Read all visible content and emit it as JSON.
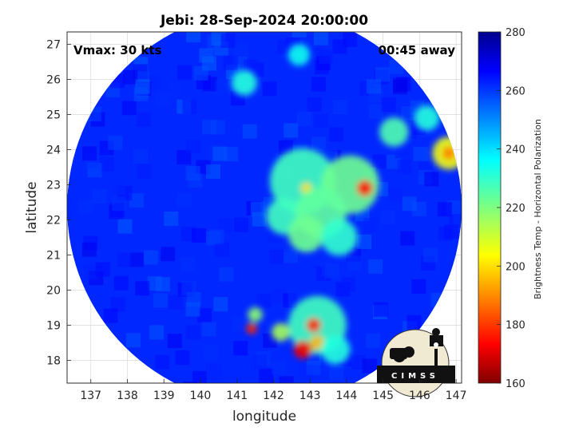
{
  "chart_data": {
    "type": "heatmap",
    "title": "Jebi: 28-Sep-2024 20:00:00",
    "annotations": {
      "vmax": "Vmax: 30 kts",
      "time_away": "00:45 away"
    },
    "xlabel": "longitude",
    "ylabel": "latitude",
    "xlim": [
      136.35,
      147.15
    ],
    "ylim": [
      17.35,
      27.35
    ],
    "xticks": [
      137,
      138,
      139,
      140,
      141,
      142,
      143,
      144,
      145,
      146,
      147
    ],
    "yticks": [
      18,
      19,
      20,
      21,
      22,
      23,
      24,
      25,
      26,
      27
    ],
    "grid": true,
    "colorbar": {
      "label": "Brightness Temp - Horizontal Polarization",
      "range": [
        160,
        280
      ],
      "ticks": [
        160,
        180,
        200,
        220,
        240,
        260,
        280
      ]
    },
    "swath": {
      "center_lon": 141.75,
      "center_lat": 22.35,
      "radius_deg": 5.4,
      "background_value": 262
    },
    "features": [
      {
        "lon": 142.8,
        "lat": 23.1,
        "r": 0.9,
        "value": 228
      },
      {
        "lon": 144.1,
        "lat": 23.0,
        "r": 0.8,
        "value": 222
      },
      {
        "lon": 144.5,
        "lat": 22.9,
        "r": 0.22,
        "value": 176
      },
      {
        "lon": 142.9,
        "lat": 22.9,
        "r": 0.15,
        "value": 200
      },
      {
        "lon": 142.3,
        "lat": 22.1,
        "r": 0.5,
        "value": 228
      },
      {
        "lon": 143.3,
        "lat": 22.2,
        "r": 0.7,
        "value": 224
      },
      {
        "lon": 142.9,
        "lat": 21.6,
        "r": 0.5,
        "value": 222
      },
      {
        "lon": 143.8,
        "lat": 21.5,
        "r": 0.5,
        "value": 230
      },
      {
        "lon": 145.3,
        "lat": 24.5,
        "r": 0.4,
        "value": 226
      },
      {
        "lon": 146.8,
        "lat": 23.9,
        "r": 0.45,
        "value": 205
      },
      {
        "lon": 146.8,
        "lat": 23.9,
        "r": 0.18,
        "value": 188
      },
      {
        "lon": 146.2,
        "lat": 24.9,
        "r": 0.35,
        "value": 232
      },
      {
        "lon": 141.2,
        "lat": 25.9,
        "r": 0.35,
        "value": 232
      },
      {
        "lon": 142.7,
        "lat": 26.7,
        "r": 0.3,
        "value": 234
      },
      {
        "lon": 143.2,
        "lat": 19.0,
        "r": 0.8,
        "value": 228
      },
      {
        "lon": 143.1,
        "lat": 19.0,
        "r": 0.2,
        "value": 178
      },
      {
        "lon": 142.8,
        "lat": 18.3,
        "r": 0.25,
        "value": 172
      },
      {
        "lon": 143.2,
        "lat": 18.5,
        "r": 0.2,
        "value": 195
      },
      {
        "lon": 141.5,
        "lat": 19.3,
        "r": 0.2,
        "value": 218
      },
      {
        "lon": 141.4,
        "lat": 18.9,
        "r": 0.15,
        "value": 178
      },
      {
        "lon": 142.2,
        "lat": 18.8,
        "r": 0.25,
        "value": 215
      },
      {
        "lon": 143.7,
        "lat": 18.3,
        "r": 0.4,
        "value": 232
      }
    ]
  },
  "logo": {
    "text": "CIMSS"
  }
}
